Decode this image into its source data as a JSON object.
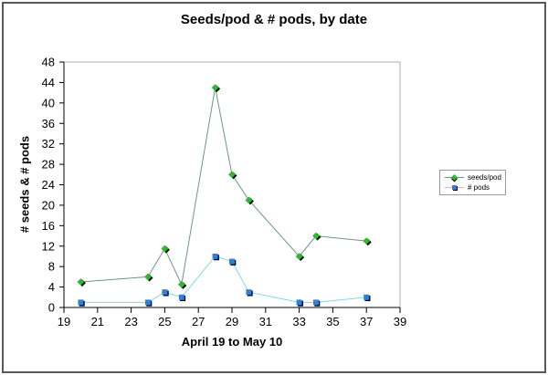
{
  "window": {
    "background": "#ffffff",
    "outer_border_color": "#58585a"
  },
  "colors": {
    "axis": "#000000",
    "plot_border": "#aeaeae",
    "legend_border": "#999999",
    "text": "#000000"
  },
  "chart_data": {
    "type": "line",
    "title": "Seeds/pod & # pods, by date",
    "xlabel": "April 19 to May 10",
    "ylabel": "# seeds & # pods",
    "xlim": [
      19,
      39
    ],
    "ylim": [
      0,
      48
    ],
    "x_ticks": [
      19,
      21,
      23,
      25,
      27,
      29,
      31,
      33,
      35,
      37,
      39
    ],
    "y_ticks": [
      0,
      4,
      8,
      12,
      16,
      20,
      24,
      28,
      32,
      36,
      40,
      44,
      48
    ],
    "grid": false,
    "legend_position": "right",
    "series": [
      {
        "name": "seeds/pod",
        "marker": "diamond",
        "marker_color": "#2eb82e",
        "marker_shadow_color": "#000000",
        "line_color": "#6e9682",
        "x": [
          20,
          24,
          25,
          26,
          28,
          29,
          30,
          33,
          34,
          37
        ],
        "y": [
          5,
          6,
          11.5,
          4.5,
          43,
          26,
          21,
          10,
          14,
          13
        ]
      },
      {
        "name": "# pods",
        "marker": "square",
        "marker_color": "#2d7fe0",
        "marker_shadow_color": "#000000",
        "line_color": "#82d7e8",
        "x": [
          20,
          24,
          25,
          26,
          28,
          29,
          30,
          33,
          34,
          37
        ],
        "y": [
          1,
          1,
          3,
          2,
          10,
          9,
          3,
          1,
          1,
          2
        ]
      }
    ]
  }
}
